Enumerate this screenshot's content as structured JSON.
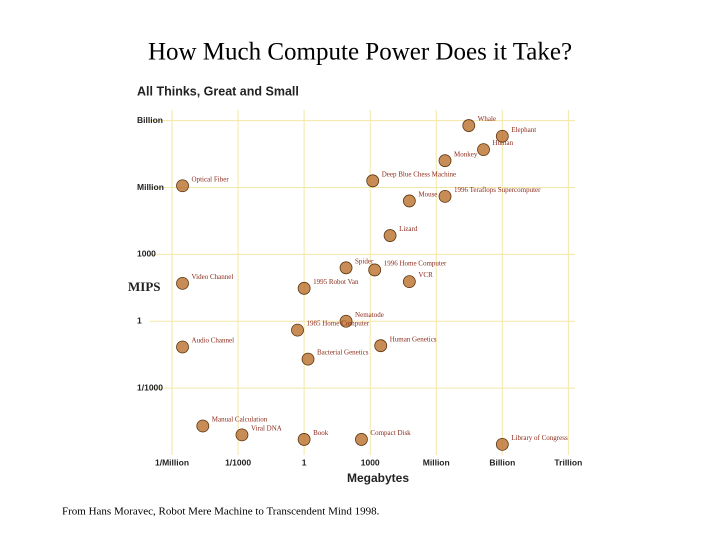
{
  "slide_title": "How Much Compute Power Does it Take?",
  "footer": "From Hans Moravec, Robot Mere Machine to Transcendent Mind 1998.",
  "chart_data": {
    "type": "scatter",
    "title": "All Thinks, Great and Small",
    "x_label": "Megabytes",
    "y_label": "MIPS",
    "log_x": true,
    "log_y": true,
    "grid": true,
    "grid_color": "#f3e7a6",
    "color": "#b5651d",
    "xlim": [
      1e-07,
      2000000000000
    ],
    "ylim": [
      1e-06,
      3000000000
    ],
    "xticks": [
      {
        "value": 1e-06,
        "label": "1/Million"
      },
      {
        "value": 0.001,
        "label": "1/1000"
      },
      1,
      1000,
      {
        "value": 1000000,
        "label": "Million"
      },
      {
        "value": 1000000000,
        "label": "Billion"
      },
      {
        "value": 1000000000000,
        "label": "Trillion"
      }
    ],
    "yticks": [
      {
        "value": 0.001,
        "label": "1/1000"
      },
      1,
      1000,
      {
        "value": 1000000,
        "label": "Million"
      },
      {
        "value": 1000000000,
        "label": "Billion"
      }
    ],
    "points": [
      {
        "label": "Whale",
        "x": 30000000,
        "y": 600000000
      },
      {
        "label": "Elephant",
        "x": 1000000000,
        "y": 200000000
      },
      {
        "label": "Human",
        "x": 140000000,
        "y": 50000000
      },
      {
        "label": "Monkey",
        "x": 2500000,
        "y": 16000000
      },
      {
        "label": "Deep Blue Chess Machine",
        "x": 1300,
        "y": 2000000
      },
      {
        "label": "Mouse",
        "x": 60000,
        "y": 250000
      },
      {
        "label": "1996 Teraflops Supercomputer",
        "x": 2500000,
        "y": 400000
      },
      {
        "label": "Lizard",
        "x": 8000,
        "y": 7000
      },
      {
        "label": "Spider",
        "x": 80,
        "y": 250
      },
      {
        "label": "1996 Home Computer",
        "x": 1600,
        "y": 200
      },
      {
        "label": "VCR",
        "x": 60000,
        "y": 60
      },
      {
        "label": "1995 Robot Van",
        "x": 1,
        "y": 30
      },
      {
        "label": "Nematode",
        "x": 80,
        "y": 1
      },
      {
        "label": "1985 Home Computer",
        "x": 0.5,
        "y": 0.4
      },
      {
        "label": "Human Genetics",
        "x": 3000,
        "y": 0.08
      },
      {
        "label": "Bacterial Genetics",
        "x": 1.5,
        "y": 0.02
      },
      {
        "label": "Optical Fiber",
        "x": 3e-06,
        "y": 1200000
      },
      {
        "label": "Video Channel",
        "x": 3e-06,
        "y": 50
      },
      {
        "label": "Audio Channel",
        "x": 3e-06,
        "y": 0.07
      },
      {
        "label": "Manual Calculation",
        "x": 2.5e-05,
        "y": 2e-05
      },
      {
        "label": "Viral DNA",
        "x": 0.0015,
        "y": 8e-06
      },
      {
        "label": "Book",
        "x": 1,
        "y": 5e-06
      },
      {
        "label": "Compact Disk",
        "x": 400,
        "y": 5e-06
      },
      {
        "label": "Library of Congress",
        "x": 1000000000,
        "y": 3e-06
      }
    ]
  }
}
